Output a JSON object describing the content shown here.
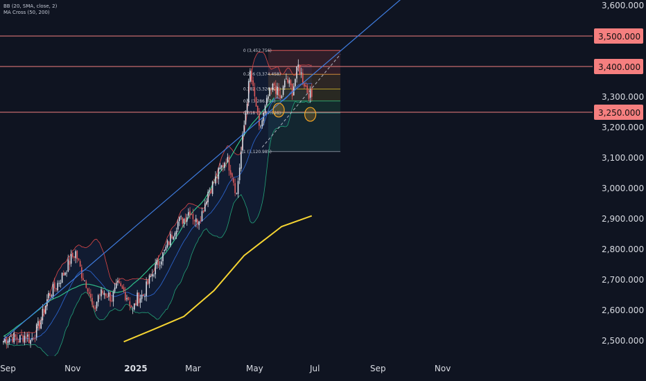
{
  "legend": {
    "bb": "BB (20, SMA, close, 2)",
    "ma": "MA Cross (50, 200)"
  },
  "colors": {
    "background": "#0f1421",
    "bull_candle": "#d8dde6",
    "bear_candle": "#e05a5a",
    "hline": "#f08080",
    "badge": "#f57f7f",
    "trendline": "#3f7de0",
    "ma50": "#2fbf8a",
    "ma200": "#f5d432",
    "bb_basis": "#2a62c9",
    "bb_upper": "#e04848",
    "bb_lower": "#23a37a"
  },
  "chart_data": {
    "type": "candlestick",
    "title": "",
    "ylim": [
      2450,
      3650
    ],
    "y_ticks": [
      "2,500.000",
      "2,600.000",
      "2,700.000",
      "2,800.000",
      "2,900.000",
      "3,000.000",
      "3,100.000",
      "3,200.000",
      "3,300.000",
      "3,600.000"
    ],
    "y_tick_values": [
      2500,
      2600,
      2700,
      2800,
      2900,
      3000,
      3100,
      3200,
      3300,
      3600
    ],
    "x_ticks": [
      {
        "label": "Sep",
        "index": 3,
        "bold": false
      },
      {
        "label": "Nov",
        "index": 46,
        "bold": false
      },
      {
        "label": "2025",
        "index": 88,
        "bold": true
      },
      {
        "label": "Mar",
        "index": 126,
        "bold": false
      },
      {
        "label": "May",
        "index": 167,
        "bold": false
      },
      {
        "label": "Jul",
        "index": 207,
        "bold": false
      },
      {
        "label": "Sep",
        "index": 249,
        "bold": false
      },
      {
        "label": "Nov",
        "index": 292,
        "bold": false
      }
    ],
    "levels": [
      {
        "value": 3500,
        "label": "3,500.000"
      },
      {
        "value": 3400,
        "label": "3,400.000"
      },
      {
        "value": 3250,
        "label": "3,250.000"
      }
    ],
    "ma200_line": [
      [
        80,
        2497
      ],
      [
        100,
        2538
      ],
      [
        120,
        2580
      ],
      [
        140,
        2665
      ],
      [
        160,
        2780
      ],
      [
        185,
        2875
      ],
      [
        205,
        2910
      ]
    ],
    "trendline": [
      [
        0,
        2505
      ],
      [
        270,
        3645
      ]
    ],
    "channel_line": [
      [
        172,
        3135
      ],
      [
        224,
        3440
      ]
    ],
    "fibonacci": {
      "start_index": 176,
      "end_index": 224,
      "levels": [
        {
          "ratio": "0",
          "value": 3452.756,
          "text": "0 (3,452.756)"
        },
        {
          "ratio": "0.236",
          "value": 3374.458,
          "text": "0.236 (3,374.458)"
        },
        {
          "ratio": "0.382",
          "value": 3326.022,
          "text": "0.382 (3,326.022)"
        },
        {
          "ratio": "0.5",
          "value": 3286.874,
          "text": "0.5 (3,286.874)"
        },
        {
          "ratio": "0.618",
          "value": 3247.726,
          "text": "0.618 (3,247.726)"
        },
        {
          "ratio": "1",
          "value": 3120.985,
          "text": "1 (3,120.985)"
        }
      ]
    },
    "circles": [
      [
        183,
        3257
      ],
      [
        204,
        3243
      ]
    ],
    "candles_note": "daily candles Aug 2024 – Jun 2025, approximate closes",
    "close_anchors": [
      [
        0,
        2500
      ],
      [
        5,
        2515
      ],
      [
        10,
        2505
      ],
      [
        15,
        2520
      ],
      [
        18,
        2500
      ],
      [
        24,
        2555
      ],
      [
        30,
        2650
      ],
      [
        35,
        2680
      ],
      [
        40,
        2720
      ],
      [
        45,
        2770
      ],
      [
        48,
        2790
      ],
      [
        52,
        2720
      ],
      [
        56,
        2680
      ],
      [
        60,
        2590
      ],
      [
        63,
        2650
      ],
      [
        67,
        2660
      ],
      [
        72,
        2640
      ],
      [
        76,
        2680
      ],
      [
        80,
        2660
      ],
      [
        83,
        2640
      ],
      [
        86,
        2600
      ],
      [
        89,
        2640
      ],
      [
        93,
        2650
      ],
      [
        97,
        2700
      ],
      [
        102,
        2750
      ],
      [
        107,
        2790
      ],
      [
        112,
        2850
      ],
      [
        116,
        2890
      ],
      [
        120,
        2900
      ],
      [
        124,
        2930
      ],
      [
        128,
        2890
      ],
      [
        132,
        2920
      ],
      [
        136,
        2990
      ],
      [
        140,
        3020
      ],
      [
        144,
        3060
      ],
      [
        148,
        3100
      ],
      [
        152,
        3050
      ],
      [
        155,
        2980
      ],
      [
        158,
        3120
      ],
      [
        161,
        3250
      ],
      [
        164,
        3380
      ],
      [
        166,
        3320
      ],
      [
        168,
        3270
      ],
      [
        170,
        3190
      ],
      [
        173,
        3240
      ],
      [
        176,
        3300
      ],
      [
        180,
        3340
      ],
      [
        184,
        3290
      ],
      [
        188,
        3360
      ],
      [
        192,
        3320
      ],
      [
        196,
        3400
      ],
      [
        199,
        3360
      ],
      [
        202,
        3320
      ],
      [
        205,
        3300
      ]
    ]
  }
}
